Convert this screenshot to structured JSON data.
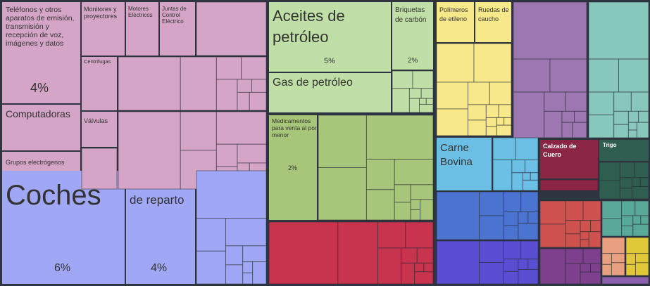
{
  "chart_data": {
    "type": "treemap",
    "colors": {
      "machinery": "#d4a5c6",
      "vehicles": "#a0a8f6",
      "mineral": "#bfdfa6",
      "chemicals": "#a8c67a",
      "plastics": "#f7e88a",
      "metals": "#9d77b2",
      "stone": "#88c8ba",
      "red": "#c8334e",
      "animal": "#6cbfe4",
      "blue": "#4b74d0",
      "leather": "#8a2544",
      "veg": "#2f5e50"
    },
    "labels": {
      "telefonos": "Teléfonos y otros aparatos de emisión, transmisión y recepción de voz, imágenes y datos",
      "telefonos_pct": "4%",
      "monitores": "Monitores y proyectores",
      "motores": "Motores Eléctricos",
      "juntas": "Juntas de Control Eléctrico",
      "centrifugas": "Centrifugas",
      "computadoras": "Computadoras",
      "valvulas": "Válvulas",
      "grupos": "Grupos electrógenos",
      "coches": "Coches",
      "coches_pct": "6%",
      "camiones": "Camiones de reparto",
      "camiones_pct": "4%",
      "aceites": "Aceites de petróleo",
      "aceites_pct": "5%",
      "briquetas": "Briquetas de carbón",
      "briquetas_pct": "2%",
      "gas": "Gas de petróleo",
      "medicamentos": "Medicamentos para venta al por menor",
      "medicamentos_pct": "2%",
      "polimeros": "Polímeros de etileno",
      "ruedas": "Ruedas de caucho",
      "carne": "Carne Bovina",
      "calzado": "Calzado de Cuero",
      "trigo": "Trigo"
    }
  }
}
